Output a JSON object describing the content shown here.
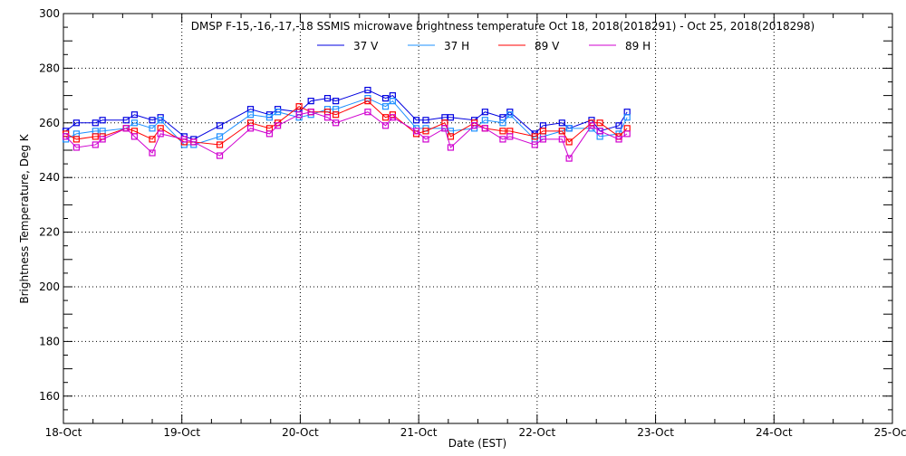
{
  "chart_data": {
    "type": "line",
    "title": "DMSP F-15,-16,-17,-18 SSMIS microwave brightness temperature Oct 18, 2018(2018291) - Oct 25, 2018(2018298)",
    "xlabel": "Date (EST)",
    "ylabel": "Brightness Temperature, Deg K",
    "xlim": [
      0,
      7
    ],
    "ylim": [
      150,
      300
    ],
    "x_tick_labels": [
      "18-Oct",
      "19-Oct",
      "20-Oct",
      "21-Oct",
      "22-Oct",
      "23-Oct",
      "24-Oct",
      "25-Oct"
    ],
    "y_ticks": [
      160,
      180,
      200,
      220,
      240,
      260,
      280,
      300
    ],
    "grid": true,
    "legend_position": "top-center",
    "x_unit": "days since 18-Oct 00:00",
    "x": [
      0.02,
      0.11,
      0.27,
      0.33,
      0.53,
      0.6,
      0.75,
      0.82,
      1.02,
      1.1,
      1.32,
      1.58,
      1.74,
      1.81,
      1.99,
      2.09,
      2.23,
      2.3,
      2.57,
      2.72,
      2.78,
      2.98,
      3.06,
      3.22,
      3.27,
      3.47,
      3.56,
      3.71,
      3.77,
      3.98,
      4.05,
      4.21,
      4.27,
      4.46,
      4.53,
      4.69,
      4.76
    ],
    "series": [
      {
        "name": "37 V",
        "color": "#0000e0",
        "values": [
          257,
          260,
          260,
          261,
          261,
          263,
          261,
          262,
          255,
          254,
          259,
          265,
          263,
          265,
          264,
          268,
          269,
          268,
          272,
          269,
          270,
          261,
          261,
          262,
          262,
          261,
          264,
          262,
          264,
          256,
          259,
          260,
          258,
          261,
          257,
          259,
          264
        ]
      },
      {
        "name": "37 H",
        "color": "#1e90ff",
        "values": [
          254,
          256,
          257,
          257,
          258,
          260,
          258,
          261,
          252,
          252,
          255,
          263,
          262,
          264,
          262,
          263,
          265,
          265,
          269,
          266,
          268,
          258,
          258,
          258,
          257,
          258,
          261,
          260,
          263,
          254,
          255,
          257,
          258,
          258,
          255,
          256,
          262
        ]
      },
      {
        "name": "89 V",
        "color": "#ff0000",
        "values": [
          256,
          254,
          255,
          255,
          258,
          257,
          254,
          258,
          253,
          253,
          252,
          260,
          258,
          260,
          266,
          264,
          264,
          263,
          268,
          262,
          263,
          256,
          257,
          260,
          255,
          260,
          258,
          257,
          257,
          255,
          257,
          257,
          253,
          260,
          260,
          255,
          258
        ]
      },
      {
        "name": "89 H",
        "color": "#d000d0",
        "values": [
          255,
          251,
          252,
          254,
          258,
          255,
          249,
          256,
          254,
          253,
          248,
          258,
          256,
          259,
          263,
          264,
          262,
          260,
          264,
          259,
          262,
          257,
          254,
          258,
          251,
          259,
          258,
          254,
          255,
          252,
          254,
          254,
          247,
          259,
          257,
          254,
          256
        ]
      }
    ]
  }
}
